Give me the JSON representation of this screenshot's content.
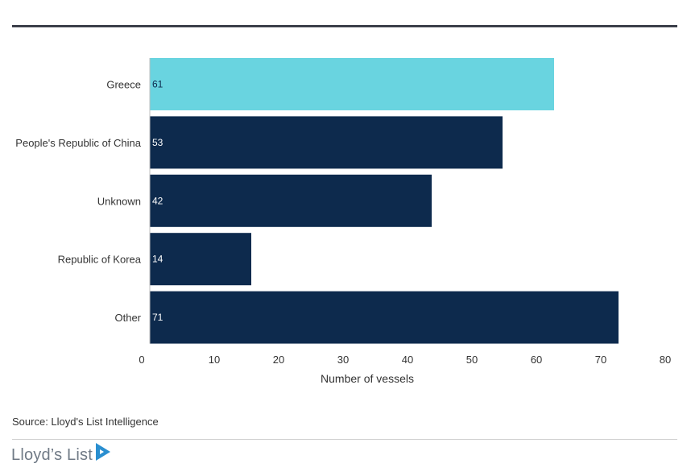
{
  "chart_data": {
    "type": "bar",
    "orientation": "horizontal",
    "categories": [
      "Greece",
      "People's Republic of China",
      "Unknown",
      "Republic of Korea",
      "Other"
    ],
    "values": [
      61,
      53,
      42,
      14,
      71
    ],
    "xlabel": "Number of vessels",
    "ylabel": "",
    "xlim": [
      0,
      80
    ],
    "xticks": [
      0,
      10,
      20,
      30,
      40,
      50,
      60,
      70,
      80
    ],
    "grid": false,
    "colors": [
      "#69d4e0",
      "#0d2a4d",
      "#0d2a4d",
      "#0d2a4d",
      "#0d2a4d"
    ],
    "value_label_colors": [
      "#0d2a4d",
      "#ffffff",
      "#ffffff",
      "#ffffff",
      "#ffffff"
    ]
  },
  "footer": {
    "source": "Source: Lloyd's List Intelligence",
    "logo_text": "Lloyd’s List"
  },
  "colors": {
    "rule": "#3b3f4a",
    "logo": "#707a86",
    "logo_mark": "#2a8fd0"
  }
}
